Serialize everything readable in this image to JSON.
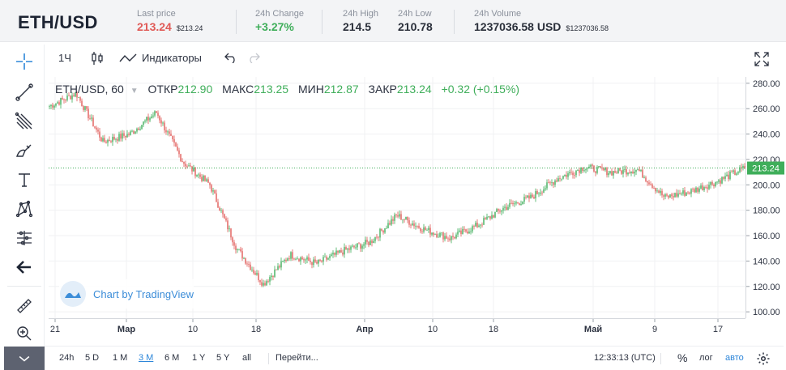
{
  "header": {
    "pair": "ETH/USD",
    "last_price_label": "Last price",
    "last_price": "213.24",
    "last_price_sub": "$213.24",
    "change_label": "24h Change",
    "change": "+3.27%",
    "high_label": "24h High",
    "high": "214.5",
    "low_label": "24h Low",
    "low": "210.78",
    "volume_label": "24h Volume",
    "volume": "1237036.58 USD",
    "volume_sub": "$1237036.58"
  },
  "toolbar": {
    "interval": "1Ч",
    "indicators": "Индикаторы"
  },
  "legend": {
    "symbol": "ETH/USD, 60",
    "open_label": "ОТКР",
    "open": "212.90",
    "high_label": "МАКС",
    "high": "213.25",
    "low_label": "МИН",
    "low": "212.87",
    "close_label": "ЗАКР",
    "close": "213.24",
    "change": "+0.32 (+0.15%)"
  },
  "badge": {
    "text": "Chart by TradingView"
  },
  "bottom": {
    "ranges": [
      "24h",
      "5 D",
      "1 M",
      "3 M",
      "6 M",
      "1 Y",
      "5 Y",
      "all"
    ],
    "active_range": "3 M",
    "goto": "Перейти...",
    "time": "12:33:13 (UTC)",
    "percent": "%",
    "log": "лог",
    "auto": "авто"
  },
  "icons": [
    "crosshair-icon",
    "trendline-icon",
    "pitchfork-icon",
    "brush-icon",
    "text-icon",
    "pattern-icon",
    "measure-icon",
    "back-arrow-icon",
    "ruler-icon",
    "zoom-icon",
    "candles-icon",
    "indicators-icon",
    "undo-icon",
    "redo-icon",
    "fullscreen-icon",
    "gear-icon",
    "tradingview-logo-icon"
  ],
  "colors": {
    "up": "#3fae5a",
    "down": "#e05a57",
    "accent": "#2d86d9"
  },
  "chart_data": {
    "type": "candlestick",
    "series": [
      {
        "name": "ETH/USD, 60",
        "x": [
          "21",
          "Мар",
          "10",
          "18",
          "Апр",
          "10",
          "18",
          "Май",
          "9",
          "17"
        ],
        "close_points": [
          [
            "21",
            262
          ],
          [
            "21",
            272
          ],
          [
            "Мар",
            234
          ],
          [
            "Мар",
            240
          ],
          [
            "10",
            257
          ],
          [
            "10",
            218
          ],
          [
            "10",
            200
          ],
          [
            "10",
            150
          ],
          [
            "18",
            122
          ],
          [
            "18",
            145
          ],
          [
            "18",
            138
          ],
          [
            "Апр",
            148
          ],
          [
            "Апр",
            155
          ],
          [
            "Апр",
            176
          ],
          [
            "10",
            165
          ],
          [
            "10",
            158
          ],
          [
            "18",
            168
          ],
          [
            "18",
            182
          ],
          [
            "18",
            190
          ],
          [
            "Май",
            205
          ],
          [
            "Май",
            214
          ],
          [
            "Май",
            210
          ],
          [
            "9",
            212
          ],
          [
            "9",
            190
          ],
          [
            "9",
            195
          ],
          [
            "17",
            203
          ],
          [
            "17",
            213.24
          ]
        ]
      }
    ],
    "last_price": 213.24,
    "yaxis": {
      "ticks": [
        100,
        120,
        140,
        160,
        180,
        200,
        220,
        240,
        260,
        280
      ],
      "range": [
        95,
        285
      ]
    },
    "xaxis": {
      "ticks": [
        "21",
        "Мар",
        "10",
        "18",
        "Апр",
        "10",
        "18",
        "Май",
        "9",
        "17"
      ]
    },
    "grid": true
  }
}
